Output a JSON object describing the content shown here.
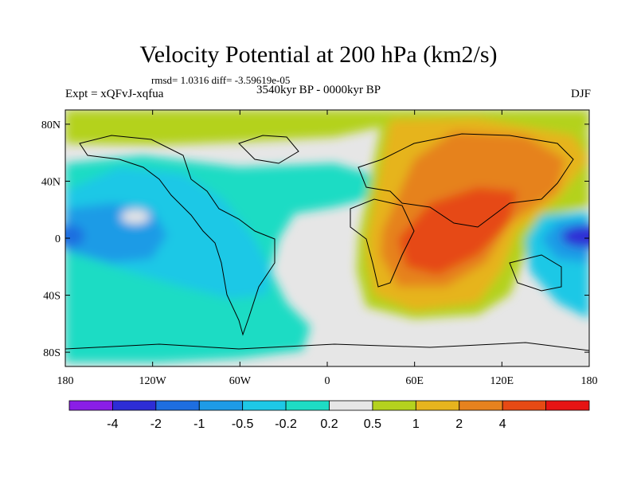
{
  "title": "Velocity Potential at 200 hPa (km2/s)",
  "stats": "rmsd= 1.0316 diff= -3.59619e-05",
  "expt": "Expt = xQFvJ-xqfua",
  "period": "3540kyr BP - 0000kyr BP",
  "season": "DJF",
  "axes": {
    "x_ticks": [
      {
        "value": -180,
        "label": "180"
      },
      {
        "value": -120,
        "label": "120W"
      },
      {
        "value": -60,
        "label": "60W"
      },
      {
        "value": 0,
        "label": "0"
      },
      {
        "value": 60,
        "label": "60E"
      },
      {
        "value": 120,
        "label": "120E"
      },
      {
        "value": 180,
        "label": "180"
      }
    ],
    "y_ticks": [
      {
        "value": 80,
        "label": "80N"
      },
      {
        "value": 40,
        "label": "40N"
      },
      {
        "value": 0,
        "label": "0"
      },
      {
        "value": -40,
        "label": "40S"
      },
      {
        "value": -80,
        "label": "80S"
      }
    ],
    "xlim": [
      -180,
      180
    ],
    "ylim": [
      -90,
      90
    ]
  },
  "colorbar": {
    "colors": [
      "#8a1ee6",
      "#2d2dd6",
      "#1e6ee0",
      "#1e9be6",
      "#1ec8e6",
      "#1edcc4",
      "#e6e6e6",
      "#b4d21e",
      "#e6b41e",
      "#e6821e",
      "#e64a14",
      "#e61414"
    ],
    "labels": [
      "-4",
      "-2",
      "-1",
      "-0.5",
      "-0.2",
      "0.2",
      "0.5",
      "1",
      "2",
      "4"
    ]
  }
}
